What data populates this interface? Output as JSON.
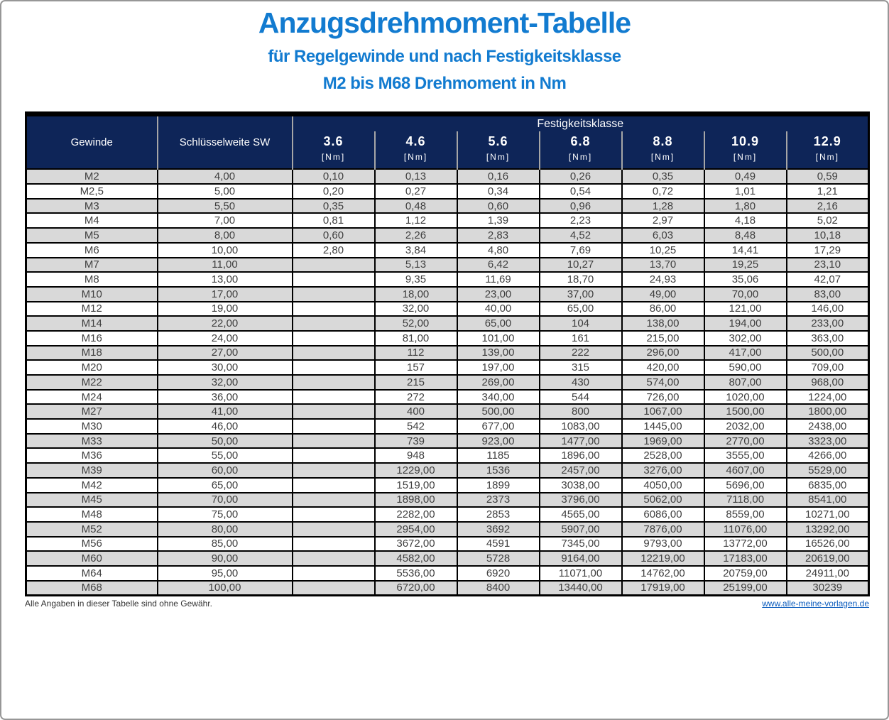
{
  "page": {
    "title": "Anzugsdrehmoment-Tabelle",
    "subtitle1": "für Regelgewinde und nach Festigkeitsklasse",
    "subtitle2": "M2 bis M68 Drehmoment in Nm"
  },
  "colors": {
    "title_blue": "#127BD0",
    "header_navy": "#0E2558",
    "row_stripe_gray": "#D9D9D9",
    "link_blue": "#0B5CBD"
  },
  "table": {
    "header": {
      "gewinde": "Gewinde",
      "schluesselweite": "Schlüsselweite SW",
      "festigkeitsklasse": "Festigkeitsklasse",
      "classes": [
        "3.6",
        "4.6",
        "5.6",
        "6.8",
        "8.8",
        "10.9",
        "12.9"
      ],
      "unit": "[Nm]"
    },
    "rows": [
      {
        "gewinde": "M2",
        "sw": "4,00",
        "values": [
          "0,10",
          "0,13",
          "0,16",
          "0,26",
          "0,35",
          "0,49",
          "0,59"
        ]
      },
      {
        "gewinde": "M2,5",
        "sw": "5,00",
        "values": [
          "0,20",
          "0,27",
          "0,34",
          "0,54",
          "0,72",
          "1,01",
          "1,21"
        ]
      },
      {
        "gewinde": "M3",
        "sw": "5,50",
        "values": [
          "0,35",
          "0,48",
          "0,60",
          "0,96",
          "1,28",
          "1,80",
          "2,16"
        ]
      },
      {
        "gewinde": "M4",
        "sw": "7,00",
        "values": [
          "0,81",
          "1,12",
          "1,39",
          "2,23",
          "2,97",
          "4,18",
          "5,02"
        ]
      },
      {
        "gewinde": "M5",
        "sw": "8,00",
        "values": [
          "0,60",
          "2,26",
          "2,83",
          "4,52",
          "6,03",
          "8,48",
          "10,18"
        ]
      },
      {
        "gewinde": "M6",
        "sw": "10,00",
        "values": [
          "2,80",
          "3,84",
          "4,80",
          "7,69",
          "10,25",
          "14,41",
          "17,29"
        ]
      },
      {
        "gewinde": "M7",
        "sw": "11,00",
        "values": [
          "",
          "5,13",
          "6,42",
          "10,27",
          "13,70",
          "19,25",
          "23,10"
        ]
      },
      {
        "gewinde": "M8",
        "sw": "13,00",
        "values": [
          "",
          "9,35",
          "11,69",
          "18,70",
          "24,93",
          "35,06",
          "42,07"
        ]
      },
      {
        "gewinde": "M10",
        "sw": "17,00",
        "values": [
          "",
          "18,00",
          "23,00",
          "37,00",
          "49,00",
          "70,00",
          "83,00"
        ]
      },
      {
        "gewinde": "M12",
        "sw": "19,00",
        "values": [
          "",
          "32,00",
          "40,00",
          "65,00",
          "86,00",
          "121,00",
          "146,00"
        ]
      },
      {
        "gewinde": "M14",
        "sw": "22,00",
        "values": [
          "",
          "52,00",
          "65,00",
          "104",
          "138,00",
          "194,00",
          "233,00"
        ]
      },
      {
        "gewinde": "M16",
        "sw": "24,00",
        "values": [
          "",
          "81,00",
          "101,00",
          "161",
          "215,00",
          "302,00",
          "363,00"
        ]
      },
      {
        "gewinde": "M18",
        "sw": "27,00",
        "values": [
          "",
          "112",
          "139,00",
          "222",
          "296,00",
          "417,00",
          "500,00"
        ]
      },
      {
        "gewinde": "M20",
        "sw": "30,00",
        "values": [
          "",
          "157",
          "197,00",
          "315",
          "420,00",
          "590,00",
          "709,00"
        ]
      },
      {
        "gewinde": "M22",
        "sw": "32,00",
        "values": [
          "",
          "215",
          "269,00",
          "430",
          "574,00",
          "807,00",
          "968,00"
        ]
      },
      {
        "gewinde": "M24",
        "sw": "36,00",
        "values": [
          "",
          "272",
          "340,00",
          "544",
          "726,00",
          "1020,00",
          "1224,00"
        ]
      },
      {
        "gewinde": "M27",
        "sw": "41,00",
        "values": [
          "",
          "400",
          "500,00",
          "800",
          "1067,00",
          "1500,00",
          "1800,00"
        ]
      },
      {
        "gewinde": "M30",
        "sw": "46,00",
        "values": [
          "",
          "542",
          "677,00",
          "1083,00",
          "1445,00",
          "2032,00",
          "2438,00"
        ]
      },
      {
        "gewinde": "M33",
        "sw": "50,00",
        "values": [
          "",
          "739",
          "923,00",
          "1477,00",
          "1969,00",
          "2770,00",
          "3323,00"
        ]
      },
      {
        "gewinde": "M36",
        "sw": "55,00",
        "values": [
          "",
          "948",
          "1185",
          "1896,00",
          "2528,00",
          "3555,00",
          "4266,00"
        ]
      },
      {
        "gewinde": "M39",
        "sw": "60,00",
        "values": [
          "",
          "1229,00",
          "1536",
          "2457,00",
          "3276,00",
          "4607,00",
          "5529,00"
        ]
      },
      {
        "gewinde": "M42",
        "sw": "65,00",
        "values": [
          "",
          "1519,00",
          "1899",
          "3038,00",
          "4050,00",
          "5696,00",
          "6835,00"
        ]
      },
      {
        "gewinde": "M45",
        "sw": "70,00",
        "values": [
          "",
          "1898,00",
          "2373",
          "3796,00",
          "5062,00",
          "7118,00",
          "8541,00"
        ]
      },
      {
        "gewinde": "M48",
        "sw": "75,00",
        "values": [
          "",
          "2282,00",
          "2853",
          "4565,00",
          "6086,00",
          "8559,00",
          "10271,00"
        ]
      },
      {
        "gewinde": "M52",
        "sw": "80,00",
        "values": [
          "",
          "2954,00",
          "3692",
          "5907,00",
          "7876,00",
          "11076,00",
          "13292,00"
        ]
      },
      {
        "gewinde": "M56",
        "sw": "85,00",
        "values": [
          "",
          "3672,00",
          "4591",
          "7345,00",
          "9793,00",
          "13772,00",
          "16526,00"
        ]
      },
      {
        "gewinde": "M60",
        "sw": "90,00",
        "values": [
          "",
          "4582,00",
          "5728",
          "9164,00",
          "12219,00",
          "17183,00",
          "20619,00"
        ]
      },
      {
        "gewinde": "M64",
        "sw": "95,00",
        "values": [
          "",
          "5536,00",
          "6920",
          "11071,00",
          "14762,00",
          "20759,00",
          "24911,00"
        ]
      },
      {
        "gewinde": "M68",
        "sw": "100,00",
        "values": [
          "",
          "6720,00",
          "8400",
          "13440,00",
          "17919,00",
          "25199,00",
          "30239"
        ]
      }
    ]
  },
  "footer": {
    "note": "Alle Angaben in dieser Tabelle sind ohne Gewähr.",
    "link": "www.alle-meine-vorlagen.de"
  }
}
